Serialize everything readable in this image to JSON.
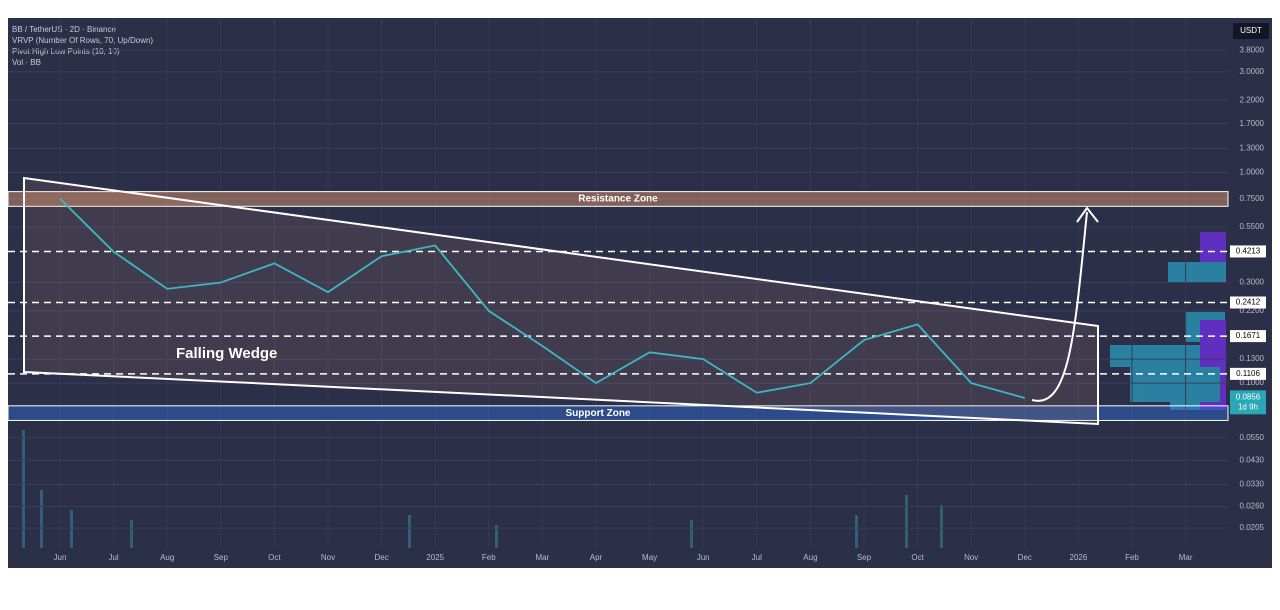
{
  "chart_data": {
    "type": "line",
    "title": "BB / TetherUS · 2D · Binance",
    "indicators": [
      "VRVP (Number Of Rows, 70, Up/Down)",
      "Pivot High Low Points (10, 10)",
      "Vol · BB"
    ],
    "currency": "USDT",
    "pattern_label": "Falling Wedge",
    "countdown": "1d 9h",
    "log_scale": true,
    "grid": true,
    "color": "#3fb6c4",
    "categories": [
      "Jun",
      "Jul",
      "Aug",
      "Sep",
      "Oct",
      "Nov",
      "Dec",
      "2025",
      "Feb",
      "Mar",
      "Apr",
      "May",
      "Jun",
      "Jul",
      "Aug",
      "Sep",
      "Oct",
      "Nov",
      "Dec",
      "2026",
      "Feb",
      "Mar"
    ],
    "values": [
      0.75,
      0.42,
      0.28,
      0.3,
      0.37,
      0.27,
      0.4,
      0.45,
      0.22,
      0.15,
      0.1,
      0.14,
      0.13,
      0.09,
      0.1,
      0.16,
      0.19,
      0.1,
      0.085,
      null,
      null,
      null
    ],
    "ylim": [
      0.0165,
      5.4
    ],
    "yticks": [
      {
        "value": 3.8,
        "label": "3.8000"
      },
      {
        "value": 3,
        "label": "3.0000"
      },
      {
        "value": 2.2,
        "label": "2.2000"
      },
      {
        "value": 1.7,
        "label": "1.7000"
      },
      {
        "value": 1.3,
        "label": "1.3000"
      },
      {
        "value": 1,
        "label": "1.0000"
      },
      {
        "value": 0.75,
        "label": "0.7500"
      },
      {
        "value": 0.55,
        "label": "0.5500"
      },
      {
        "value": 0.3,
        "label": "0.3000"
      },
      {
        "value": 0.22,
        "label": "0.2200"
      },
      {
        "value": 0.13,
        "label": "0.1300"
      },
      {
        "value": 0.1,
        "label": "0.1000"
      },
      {
        "value": 0.055,
        "label": "0.0550"
      },
      {
        "value": 0.043,
        "label": "0.0430"
      },
      {
        "value": 0.033,
        "label": "0.0330"
      },
      {
        "value": 0.026,
        "label": "0.0260"
      },
      {
        "value": 0.0205,
        "label": "0.0205"
      }
    ],
    "levels": [
      0.4213,
      0.2412,
      0.1671,
      0.1106
    ],
    "current_price": 0.0856,
    "zones": [
      {
        "label": "Resistance Zone",
        "range": [
          0.69,
          0.81
        ],
        "color": "#e8a070"
      },
      {
        "label": "Support Zone",
        "range": [
          0.0665,
          0.078
        ],
        "color": "#2f6fd6"
      }
    ]
  }
}
